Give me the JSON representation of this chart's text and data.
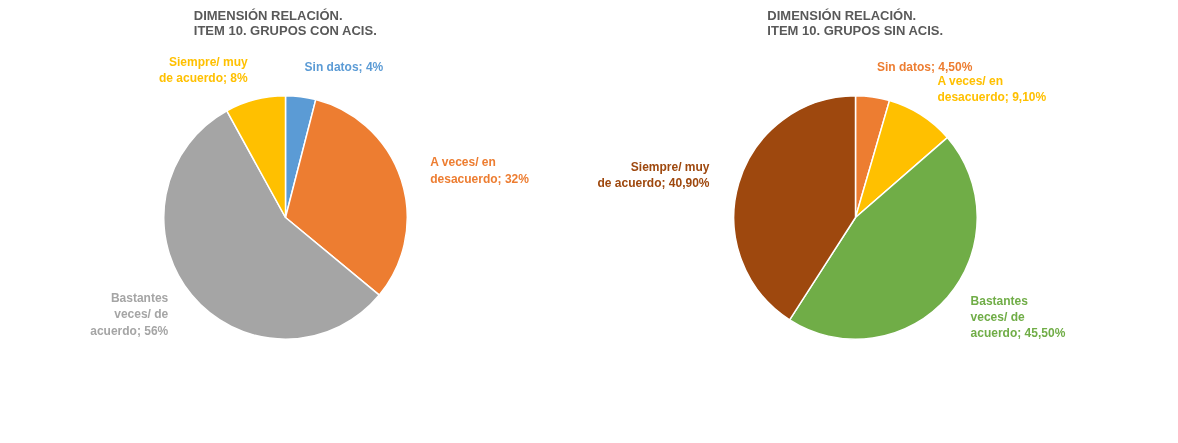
{
  "chart_data": [
    {
      "type": "pie",
      "title": "DIMENSIÓN RELACIÓN.\nITEM 10. GRUPOS CON ACIS.",
      "categories": [
        "Sin datos",
        "A veces/ en desacuerdo",
        "Bastantes veces/ de acuerdo",
        "Siempre/ muy de acuerdo"
      ],
      "values": [
        4,
        32,
        56,
        8
      ],
      "value_labels": [
        "4%",
        "32%",
        "56%",
        "8%"
      ],
      "colors": [
        "#5b9bd5",
        "#ed7d31",
        "#a5a5a5",
        "#ffc000"
      ]
    },
    {
      "type": "pie",
      "title": "DIMENSIÓN RELACIÓN.\nITEM 10. GRUPOS SIN ACIS.",
      "categories": [
        "Sin datos",
        "A veces/ en desacuerdo",
        "Bastantes veces/ de acuerdo",
        "Siempre/ muy de acuerdo"
      ],
      "values": [
        4.5,
        9.1,
        45.5,
        40.9
      ],
      "value_labels": [
        "4,50%",
        "9,10%",
        "45,50%",
        "40,90%"
      ],
      "colors": [
        "#ed7d31",
        "#ffc000",
        "#70ad47",
        "#9e480e"
      ]
    }
  ]
}
